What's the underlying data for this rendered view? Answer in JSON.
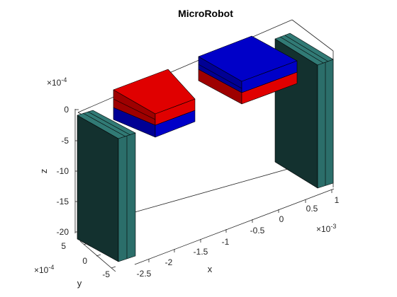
{
  "title": "MicroRobot",
  "axes": {
    "x": {
      "label": "x",
      "ticks": [
        "-2.5",
        "-2",
        "-1.5",
        "-1",
        "-0.5",
        "0",
        "0.5",
        "1"
      ],
      "exponent_base": "×10",
      "exponent": "-3"
    },
    "y": {
      "label": "y",
      "ticks": [
        "5",
        "0",
        "-5"
      ],
      "exponent_base": "×10",
      "exponent": "-4"
    },
    "z": {
      "label": "z",
      "ticks": [
        "0",
        "-5",
        "-10",
        "-15",
        "-20"
      ],
      "exponent_base": "×10",
      "exponent": "-4"
    }
  },
  "colors": {
    "pillar_dark": "#13312f",
    "pillar_teal": "#2b6e6a",
    "pillar_teal_light": "#317a75",
    "magnet_red": "#e00000",
    "magnet_red_dark": "#9e0000",
    "magnet_blue": "#0000c8",
    "magnet_blue_dark": "#000094"
  },
  "objects": [
    {
      "name": "left-pillar",
      "color": "pillar_teal"
    },
    {
      "name": "right-pillar",
      "color": "pillar_teal"
    },
    {
      "name": "left-magnet",
      "top": "magnet_red",
      "bottom": "magnet_blue"
    },
    {
      "name": "right-magnet",
      "top": "magnet_blue",
      "bottom": "magnet_red"
    }
  ]
}
